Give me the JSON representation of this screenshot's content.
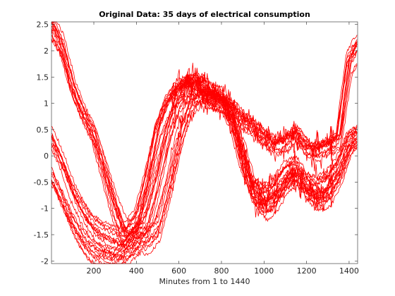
{
  "chart_data": {
    "type": "line",
    "title": "Original Data: 35 days of electrical consumption",
    "xlabel": "Minutes from 1 to 1440",
    "ylabel": "",
    "xlim": [
      1,
      1440
    ],
    "ylim": [
      -2.05,
      2.55
    ],
    "xticks": [
      200,
      400,
      600,
      800,
      1000,
      1200,
      1400
    ],
    "yticks": [
      -2,
      -1.5,
      -1,
      -0.5,
      0,
      0.5,
      1,
      1.5,
      2,
      2.5
    ],
    "grid": false,
    "legend": "none",
    "series_count": 35,
    "line_color": "#ff0000",
    "groups": [
      {
        "count": 14,
        "x": [
          1,
          50,
          100,
          150,
          200,
          250,
          300,
          350,
          400,
          450,
          500,
          550,
          600,
          650,
          700,
          750,
          800,
          850,
          900,
          950,
          1000,
          1050,
          1100,
          1150,
          1200,
          1250,
          1300,
          1350,
          1400,
          1440
        ],
        "y": [
          2.5,
          2.1,
          1.3,
          0.8,
          0.4,
          -0.3,
          -1.0,
          -1.55,
          -1.3,
          -0.5,
          0.5,
          1.05,
          1.3,
          1.4,
          1.4,
          1.15,
          1.05,
          0.9,
          0.7,
          0.55,
          0.35,
          0.2,
          0.25,
          0.45,
          0.15,
          0.1,
          0.2,
          0.3,
          1.8,
          2.1
        ]
      },
      {
        "count": 11,
        "x": [
          1,
          50,
          100,
          150,
          200,
          250,
          300,
          350,
          400,
          450,
          500,
          550,
          600,
          650,
          700,
          750,
          800,
          850,
          900,
          950,
          1000,
          1050,
          1100,
          1150,
          1200,
          1250,
          1300,
          1350,
          1400,
          1440
        ],
        "y": [
          0.35,
          -0.1,
          -0.65,
          -1.05,
          -1.35,
          -1.5,
          -1.6,
          -1.65,
          -1.55,
          -1.2,
          -0.45,
          0.45,
          1.1,
          1.35,
          1.3,
          1.15,
          1.1,
          0.75,
          0.15,
          -0.55,
          -0.75,
          -0.65,
          -0.3,
          -0.2,
          -0.5,
          -0.6,
          -0.5,
          -0.2,
          0.3,
          0.4
        ]
      },
      {
        "count": 10,
        "x": [
          1,
          50,
          100,
          150,
          200,
          250,
          300,
          350,
          400,
          450,
          500,
          550,
          600,
          650,
          700,
          750,
          800,
          850,
          900,
          950,
          1000,
          1050,
          1100,
          1150,
          1200,
          1250,
          1300,
          1350,
          1400,
          1440
        ],
        "y": [
          -0.4,
          -0.85,
          -1.3,
          -1.65,
          -1.85,
          -1.95,
          -2.0,
          -1.8,
          -1.6,
          -1.6,
          -1.35,
          -0.6,
          0.3,
          0.95,
          1.15,
          1.1,
          1.05,
          0.6,
          -0.2,
          -0.8,
          -1.0,
          -0.85,
          -0.5,
          -0.4,
          -0.7,
          -0.85,
          -0.75,
          -0.4,
          0.2,
          0.35
        ]
      }
    ]
  }
}
